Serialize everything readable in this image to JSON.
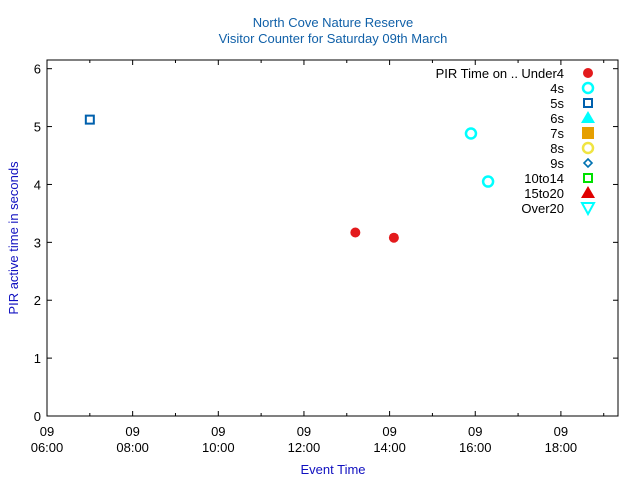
{
  "chart_data": {
    "type": "scatter",
    "title": "North Cove Nature Reserve",
    "subtitle": "Visitor Counter for Saturday 09th March",
    "xlabel": "Event Time",
    "ylabel": "PIR active time in seconds",
    "x_ticks": [
      {
        "day": "09",
        "time": "06:00"
      },
      {
        "day": "09",
        "time": "08:00"
      },
      {
        "day": "09",
        "time": "10:00"
      },
      {
        "day": "09",
        "time": "12:00"
      },
      {
        "day": "09",
        "time": "14:00"
      },
      {
        "day": "09",
        "time": "16:00"
      },
      {
        "day": "09",
        "time": "18:00"
      }
    ],
    "xlim": [
      "06:00",
      "19:20"
    ],
    "ylim": [
      0,
      6.15
    ],
    "y_ticks": [
      "0",
      "1",
      "2",
      "3",
      "4",
      "5",
      "6"
    ],
    "legend_title": "PIR Time on ..",
    "legend_position": "top-right",
    "series": [
      {
        "name": "Under4",
        "marker": "filled-circle",
        "color": "#e31a1c",
        "points": [
          {
            "x": "13:12",
            "y": 3.17
          },
          {
            "x": "14:06",
            "y": 3.08
          }
        ]
      },
      {
        "name": "4s",
        "marker": "open-circle",
        "color": "#00ffff",
        "points": [
          {
            "x": "15:54",
            "y": 4.88
          },
          {
            "x": "16:18",
            "y": 4.05
          }
        ]
      },
      {
        "name": "5s",
        "marker": "open-square",
        "color": "#0060ad",
        "points": [
          {
            "x": "07:00",
            "y": 5.12
          }
        ]
      },
      {
        "name": "6s",
        "marker": "filled-triangle-up",
        "color": "#00ffff",
        "points": []
      },
      {
        "name": "7s",
        "marker": "filled-square",
        "color": "#e69f00",
        "points": []
      },
      {
        "name": "8s",
        "marker": "open-circle",
        "color": "#f0e442",
        "points": []
      },
      {
        "name": "9s",
        "marker": "open-diamond",
        "color": "#0072b2",
        "points": []
      },
      {
        "name": "10to14",
        "marker": "open-square",
        "color": "#00e000",
        "points": []
      },
      {
        "name": "15to20",
        "marker": "filled-triangle-up",
        "color": "#e00000",
        "points": []
      },
      {
        "name": "Over20",
        "marker": "open-triangle-down",
        "color": "#00ffff",
        "points": []
      }
    ]
  }
}
